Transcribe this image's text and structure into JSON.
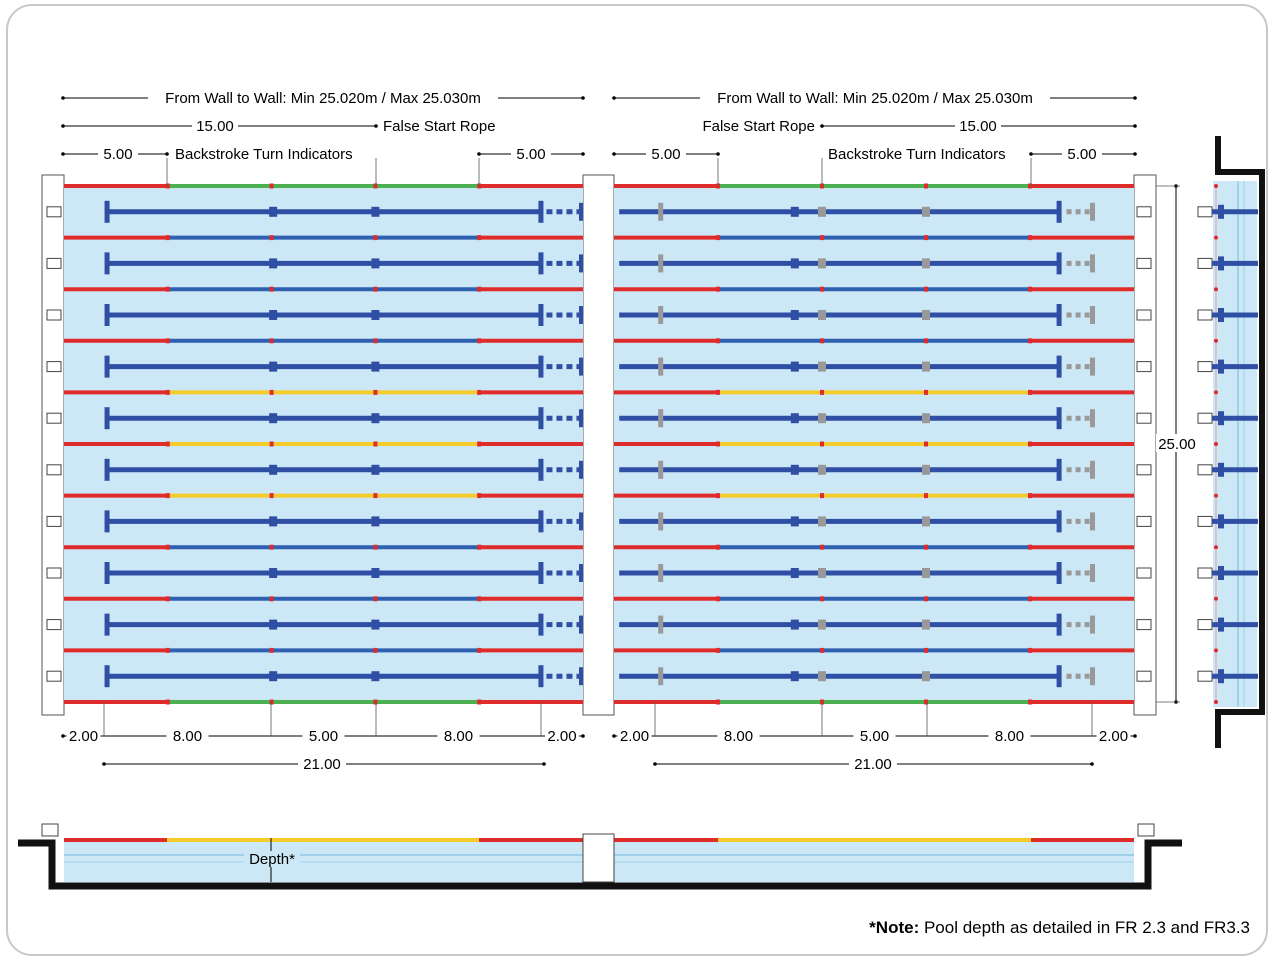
{
  "labels": {
    "wall_to_wall": "From Wall to Wall: Min 25.020m / Max 25.030m",
    "false_start": "False Start Rope",
    "backstroke": "Backstroke Turn Indicators",
    "d15": "15.00",
    "d5": "5.00",
    "d2": "2.00",
    "d8": "8.00",
    "d21": "21.00",
    "d25": "25.00",
    "depth": "Depth*"
  },
  "note": {
    "bold": "*Note:",
    "text": " Pool depth as detailed in FR 2.3 and FR3.3"
  },
  "lanes": {
    "count": 10
  },
  "colors": {
    "water": "#cce8f6",
    "lane_line": "#2e4fa3",
    "rope_red": "#e02b2b",
    "rope_green": "#4caf50",
    "rope_yellow": "#f5cc2a",
    "rope_blue": "#2e5fb0",
    "grey_marker": "#999999",
    "structure": "#111111"
  }
}
